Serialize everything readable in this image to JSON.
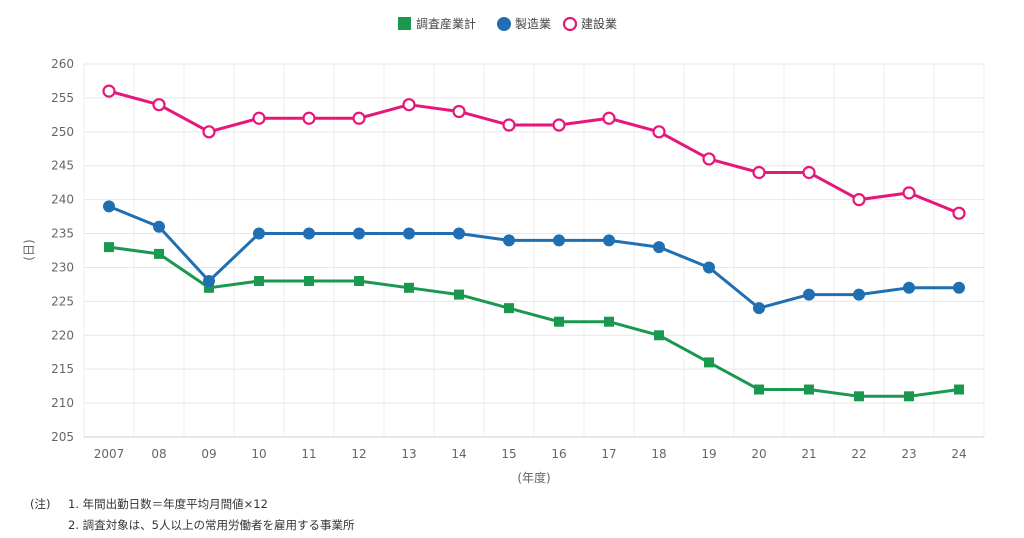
{
  "chart_data": {
    "type": "line",
    "title": "",
    "xlabel": "(年度)",
    "ylabel": "(日)",
    "categories": [
      "2007",
      "08",
      "09",
      "10",
      "11",
      "12",
      "13",
      "14",
      "15",
      "16",
      "17",
      "18",
      "19",
      "20",
      "21",
      "22",
      "23",
      "24"
    ],
    "ylim": [
      205,
      260
    ],
    "yticks": [
      205,
      210,
      215,
      220,
      225,
      230,
      235,
      240,
      245,
      250,
      255,
      260
    ],
    "grid": true,
    "legend_position": "top-center",
    "series": [
      {
        "name": "調査産業計",
        "color": "#1a9850",
        "marker": "square",
        "values": [
          233,
          232,
          227,
          228,
          228,
          228,
          227,
          226,
          224,
          222,
          222,
          220,
          216,
          212,
          212,
          211,
          211,
          212
        ]
      },
      {
        "name": "製造業",
        "color": "#1f6fb2",
        "marker": "circle",
        "values": [
          239,
          236,
          228,
          235,
          235,
          235,
          235,
          235,
          234,
          234,
          234,
          233,
          230,
          224,
          226,
          226,
          227,
          227
        ]
      },
      {
        "name": "建設業",
        "color": "#e6177a",
        "marker": "open-circle",
        "values": [
          256,
          254,
          250,
          252,
          252,
          252,
          254,
          253,
          251,
          251,
          252,
          250,
          246,
          244,
          244,
          240,
          241,
          238
        ]
      }
    ]
  },
  "notes": {
    "prefix": "(注)",
    "items": [
      "1. 年間出勤日数＝年度平均月間値×12",
      "2. 調査対象は、5人以上の常用労働者を雇用する事業所"
    ]
  }
}
